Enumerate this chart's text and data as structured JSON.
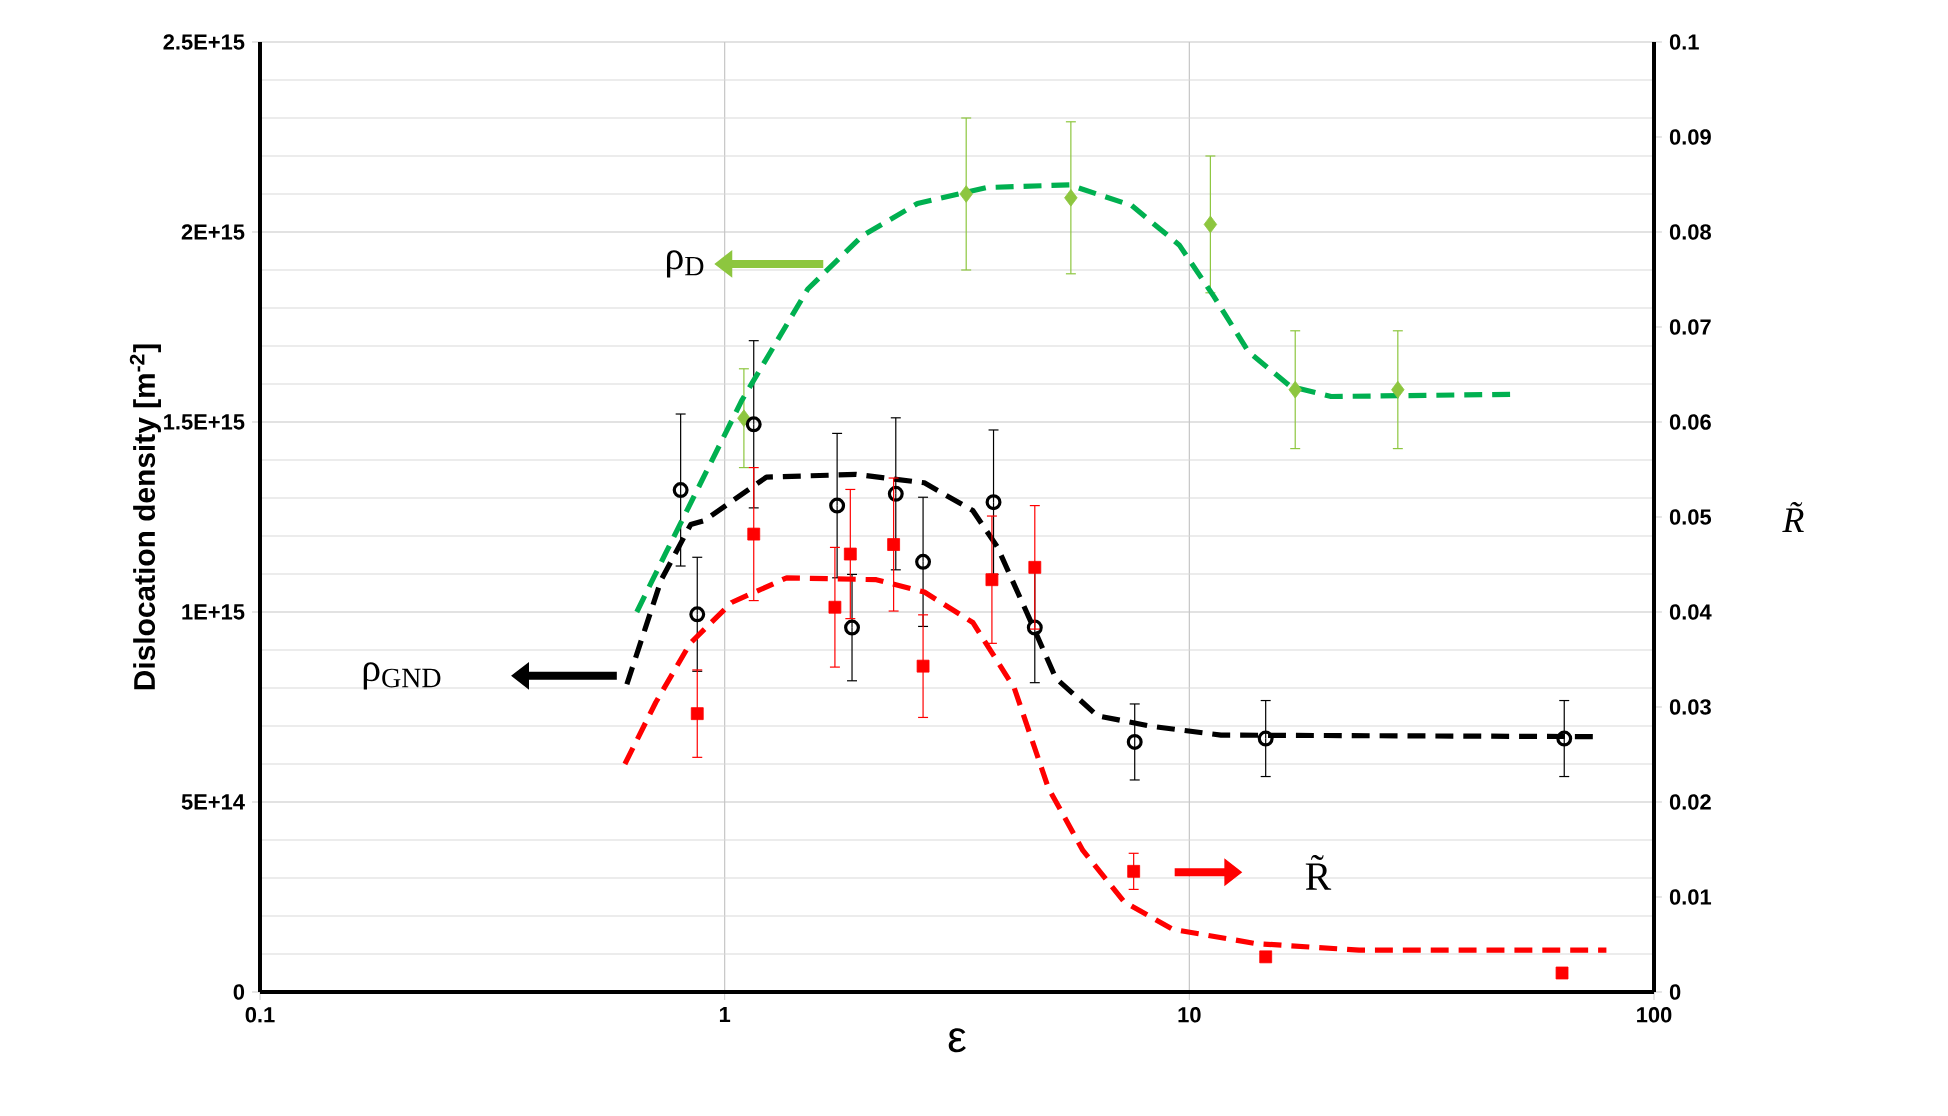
{
  "chart_data": {
    "type": "scatter",
    "xlabel": "ε",
    "ylabel": "Dislocation density [m$^{-2}$]",
    "y2label": "R̃",
    "log": "x",
    "grid": true,
    "legend": "left",
    "xlim": [
      0.1,
      100
    ],
    "xticks": [
      0.1,
      1,
      10,
      100
    ],
    "ylim": [
      0,
      2500000000000000.0
    ],
    "yticks": [
      {
        "value": 0,
        "label": "0"
      },
      {
        "value": 500000000000000.0,
        "label": "5E+14"
      },
      {
        "value": 1000000000000000.0,
        "label": "1E+15"
      },
      {
        "value": 1500000000000000.0,
        "label": "1.5E+15"
      },
      {
        "value": 2000000000000000.0,
        "label": "2E+15"
      },
      {
        "value": 2500000000000000.0,
        "label": "2.5E+15"
      }
    ],
    "y2lim": [
      0,
      0.1
    ],
    "y2ticks": [
      0,
      0.01,
      0.02,
      0.03,
      0.04,
      0.05,
      0.06,
      0.07,
      0.08,
      0.09,
      0.1
    ],
    "series": [
      {
        "name": "ρ$_{D}$",
        "color": "#8dc63f",
        "marker": "diamond",
        "x": [
          1.1,
          3.31,
          5.56,
          11.1,
          16.9,
          28.1
        ],
        "values": [
          1510000000000000.0,
          2100000000000000.0,
          2090000000000000.0,
          2020000000000000.0,
          1585000000000000.0,
          1585000000000000.0
        ],
        "errors": [
          130000000000000.0,
          200000000000000.0,
          200000000000000.0,
          180000000000000.0,
          155000000000000.0,
          155000000000000.0
        ]
      },
      {
        "name": "ρ$_{GND}$",
        "color": "#000000",
        "marker": "circle",
        "x": [
          0.804,
          0.873,
          1.155,
          1.746,
          1.88,
          2.335,
          2.673,
          3.79,
          4.65,
          7.63,
          14.6,
          64.1
        ],
        "values": [
          1321000000000000.0,
          994000000000000.0,
          1494000000000000.0,
          1280000000000000.0,
          959000000000000.0,
          1311000000000000.0,
          1132000000000000.0,
          1289000000000000.0,
          959000000000000.0,
          658000000000000.0,
          667000000000000.0,
          667000000000000.0
        ],
        "errors": [
          200000000000000.0,
          150000000000000.0,
          220000000000000.0,
          190000000000000.0,
          140000000000000.0,
          200000000000000.0,
          170000000000000.0,
          190000000000000.0,
          145000000000000.0,
          100000000000000.0,
          100000000000000.0,
          100000000000000.0
        ]
      },
      {
        "name": "R̃",
        "axis": "y2",
        "color": "#ff0000",
        "marker": "square",
        "x": [
          0.873,
          1.155,
          1.727,
          1.864,
          2.31,
          2.673,
          3.76,
          4.65,
          7.59,
          14.6,
          63.4
        ],
        "values": [
          0.0293,
          0.0482,
          0.0405,
          0.0461,
          0.0471,
          0.0343,
          0.0434,
          0.0447,
          0.0127,
          0.0037,
          0.002
        ],
        "errors": [
          0.0046,
          0.007,
          0.0063,
          0.0068,
          0.007,
          0.0054,
          0.0067,
          0.0065,
          0.0019,
          null,
          null
        ]
      },
      {
        "type": "line",
        "color": "#00b050",
        "line_style": "dashed",
        "marker": "none",
        "x": [
          0.647,
          0.749,
          1.09,
          1.51,
          1.98,
          2.6,
          3.66,
          5.52,
          7.51,
          9.51,
          11.3,
          13.4,
          16.5,
          20.2,
          50.6
        ],
        "values": [
          1000000000000000.0,
          1158000000000000.0,
          1558000000000000.0,
          1850000000000000.0,
          1990000000000000.0,
          2075000000000000.0,
          2117000000000000.0,
          2124000000000000.0,
          2070000000000000.0,
          1966000000000000.0,
          1830000000000000.0,
          1685000000000000.0,
          1594000000000000.0,
          1567000000000000.0,
          1573000000000000.0
        ]
      },
      {
        "type": "line",
        "color": "#000000",
        "line_style": "dashed",
        "marker": "none",
        "x": [
          0.616,
          0.73,
          0.845,
          0.903,
          1.23,
          1.92,
          2.69,
          3.42,
          3.86,
          4.57,
          5.16,
          6.34,
          8.31,
          11.7,
          75.2
        ],
        "values": [
          810000000000000.0,
          1084000000000000.0,
          1230000000000000.0,
          1240000000000000.0,
          1355000000000000.0,
          1362000000000000.0,
          1340000000000000.0,
          1267000000000000.0,
          1172000000000000.0,
          972000000000000.0,
          826000000000000.0,
          727000000000000.0,
          699000000000000.0,
          676000000000000.0,
          672000000000000.0
        ]
      },
      {
        "type": "line",
        "axis": "y2",
        "color": "#ff0000",
        "line_style": "dashed",
        "marker": "none",
        "x": [
          0.61,
          0.711,
          0.843,
          1.035,
          1.36,
          2.12,
          2.69,
          3.42,
          4.2,
          4.97,
          5.9,
          7.24,
          9.2,
          13.9,
          23.2,
          79
        ],
        "values": [
          0.024,
          0.0305,
          0.0367,
          0.041,
          0.0436,
          0.0434,
          0.0421,
          0.0389,
          0.032,
          0.0215,
          0.0149,
          0.0095,
          0.0066,
          0.0051,
          0.0044,
          0.0044
        ]
      }
    ]
  }
}
